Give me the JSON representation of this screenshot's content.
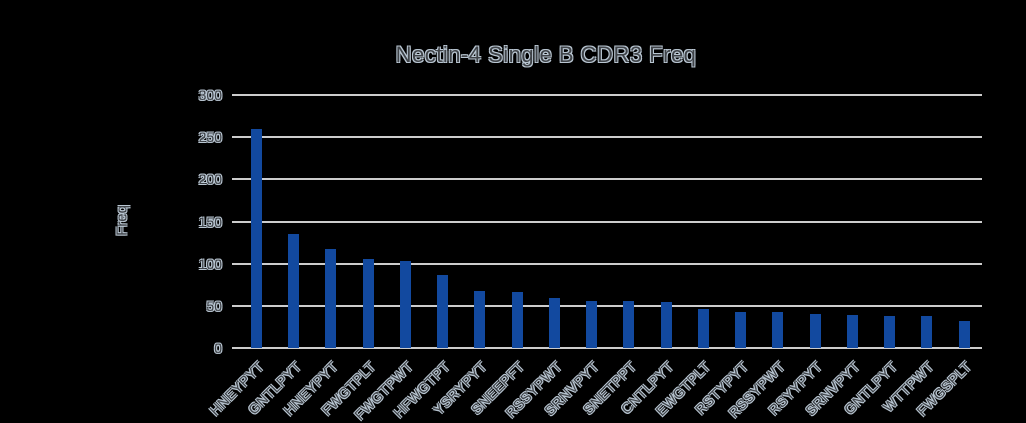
{
  "background_color": "#000000",
  "chart_data": {
    "type": "bar",
    "title": "Nectin-4 Single B CDR3 Freq",
    "ylabel": "Freq",
    "xlabel": "",
    "ylim": [
      0,
      300
    ],
    "yticks": [
      0,
      50,
      100,
      150,
      200,
      250,
      300
    ],
    "grid": "horizontal",
    "legend": "none",
    "bar_color": "#12499f",
    "gridline_color": "#cccccc",
    "categories": [
      "HNEYPYT",
      "GNTLPYT",
      "HNEYPYT",
      "FWGTPLT",
      "FWGTPWT",
      "HFWGTPT",
      "YSRYPYT",
      "SNEEPFT",
      "RSSYPWT",
      "SRNVPYT",
      "SNETPPT",
      "CNTLPYT",
      "EWGTPLT",
      "RSTYPYT",
      "RSSYPWT",
      "RSYYPYT",
      "SRNVPYT",
      "GNTLPYT",
      "WTTPWT",
      "FWGSPLT"
    ],
    "values": [
      260,
      135,
      117,
      105,
      103,
      87,
      68,
      66,
      59,
      56,
      56,
      54,
      46,
      43,
      43,
      40,
      39,
      38,
      38,
      32
    ]
  }
}
